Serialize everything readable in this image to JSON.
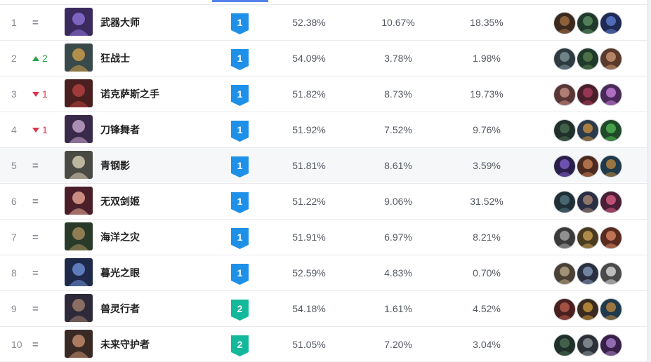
{
  "rows": [
    {
      "rank": "1",
      "change": {
        "type": "same",
        "text": "="
      },
      "name": "武器大师",
      "tier": "1",
      "win_rate": "52.38%",
      "pick_rate": "10.67%",
      "ban_rate": "18.35%",
      "icon": {
        "name": "weapon-master-portrait-icon",
        "bg": "#3a2a5e",
        "fg": "#8a6fd0"
      },
      "counters": [
        {
          "name": "counter-champ-1-icon",
          "bg": "#3d2a1f",
          "fg": "#9b6a3f"
        },
        {
          "name": "counter-champ-2-icon",
          "bg": "#1f3a2a",
          "fg": "#5a8a5f"
        },
        {
          "name": "counter-champ-3-icon",
          "bg": "#1f2a55",
          "fg": "#5a78c8"
        }
      ]
    },
    {
      "rank": "2",
      "change": {
        "type": "up",
        "text": "2"
      },
      "name": "狂战士",
      "tier": "1",
      "win_rate": "54.09%",
      "pick_rate": "3.78%",
      "ban_rate": "1.98%",
      "icon": {
        "name": "berserker-portrait-icon",
        "bg": "#3a4a4a",
        "fg": "#c79a4a"
      },
      "counters": [
        {
          "name": "counter-champ-1-icon",
          "bg": "#2d3a3f",
          "fg": "#7a8f95"
        },
        {
          "name": "counter-champ-2-icon",
          "bg": "#1f3a2a",
          "fg": "#557a4a"
        },
        {
          "name": "counter-champ-3-icon",
          "bg": "#5a3a2a",
          "fg": "#c59070"
        }
      ]
    },
    {
      "rank": "3",
      "change": {
        "type": "down",
        "text": "1"
      },
      "name": "诺克萨斯之手",
      "tier": "1",
      "win_rate": "51.82%",
      "pick_rate": "8.73%",
      "ban_rate": "19.73%",
      "icon": {
        "name": "hand-of-noxus-portrait-icon",
        "bg": "#4a1f1f",
        "fg": "#b04040"
      },
      "counters": [
        {
          "name": "counter-champ-1-icon",
          "bg": "#5a3535",
          "fg": "#c08a80"
        },
        {
          "name": "counter-champ-2-icon",
          "bg": "#4a1f2a",
          "fg": "#a03a5a"
        },
        {
          "name": "counter-champ-3-icon",
          "bg": "#4a2a5a",
          "fg": "#c07ad0"
        }
      ]
    },
    {
      "rank": "4",
      "change": {
        "type": "down",
        "text": "1"
      },
      "name": "刀锋舞者",
      "tier": "1",
      "win_rate": "51.92%",
      "pick_rate": "7.52%",
      "ban_rate": "9.76%",
      "icon": {
        "name": "blade-dancer-portrait-icon",
        "bg": "#3a2a4a",
        "fg": "#c0a0c8"
      },
      "counters": [
        {
          "name": "counter-champ-1-icon",
          "bg": "#1f2f2a",
          "fg": "#4a6a50"
        },
        {
          "name": "counter-champ-2-icon",
          "bg": "#2a3a4a",
          "fg": "#c08a40"
        },
        {
          "name": "counter-champ-3-icon",
          "bg": "#1f4a2a",
          "fg": "#50b050"
        }
      ]
    },
    {
      "rank": "5",
      "change": {
        "type": "same",
        "text": "="
      },
      "name": "青钢影",
      "tier": "1",
      "win_rate": "51.81%",
      "pick_rate": "8.61%",
      "ban_rate": "3.59%",
      "icon": {
        "name": "steel-shadow-portrait-icon",
        "bg": "#4a4a45",
        "fg": "#d0c8b0"
      },
      "counters": [
        {
          "name": "counter-champ-1-icon",
          "bg": "#2a1f4a",
          "fg": "#7a5ac0"
        },
        {
          "name": "counter-champ-2-icon",
          "bg": "#4a2a1f",
          "fg": "#c07a50"
        },
        {
          "name": "counter-champ-3-icon",
          "bg": "#1f3a4a",
          "fg": "#b08040"
        }
      ]
    },
    {
      "rank": "6",
      "change": {
        "type": "same",
        "text": "="
      },
      "name": "无双剑姬",
      "tier": "1",
      "win_rate": "51.22%",
      "pick_rate": "9.06%",
      "ban_rate": "31.52%",
      "icon": {
        "name": "peerless-swordmaiden-portrait-icon",
        "bg": "#4a1f2a",
        "fg": "#e0a090"
      },
      "counters": [
        {
          "name": "counter-champ-1-icon",
          "bg": "#1f2f35",
          "fg": "#50707a"
        },
        {
          "name": "counter-champ-2-icon",
          "bg": "#2a2f45",
          "fg": "#a08070"
        },
        {
          "name": "counter-champ-3-icon",
          "bg": "#4a1f35",
          "fg": "#d05a80"
        }
      ]
    },
    {
      "rank": "7",
      "change": {
        "type": "same",
        "text": "="
      },
      "name": "海洋之灾",
      "tier": "1",
      "win_rate": "51.91%",
      "pick_rate": "6.97%",
      "ban_rate": "8.21%",
      "icon": {
        "name": "scourge-of-seas-portrait-icon",
        "bg": "#2a3a2a",
        "fg": "#a08a5a"
      },
      "counters": [
        {
          "name": "counter-champ-1-icon",
          "bg": "#3a3a3a",
          "fg": "#a0a0a0"
        },
        {
          "name": "counter-champ-2-icon",
          "bg": "#4a3a1f",
          "fg": "#c09a50"
        },
        {
          "name": "counter-champ-3-icon",
          "bg": "#5a2a1f",
          "fg": "#d08060"
        }
      ]
    },
    {
      "rank": "8",
      "change": {
        "type": "same",
        "text": "="
      },
      "name": "暮光之眼",
      "tier": "1",
      "win_rate": "52.59%",
      "pick_rate": "4.83%",
      "ban_rate": "0.70%",
      "icon": {
        "name": "eye-of-twilight-portrait-icon",
        "bg": "#1f2a4a",
        "fg": "#6a8ad0"
      },
      "counters": [
        {
          "name": "counter-champ-1-icon",
          "bg": "#4a4035",
          "fg": "#b0a080"
        },
        {
          "name": "counter-champ-2-icon",
          "bg": "#2a3040",
          "fg": "#8090b0"
        },
        {
          "name": "counter-champ-3-icon",
          "bg": "#4a4a4a",
          "fg": "#d0d0d0"
        }
      ]
    },
    {
      "rank": "9",
      "change": {
        "type": "same",
        "text": "="
      },
      "name": "兽灵行者",
      "tier": "2",
      "win_rate": "54.18%",
      "pick_rate": "1.61%",
      "ban_rate": "4.52%",
      "icon": {
        "name": "spirit-walker-portrait-icon",
        "bg": "#2f2a3a",
        "fg": "#9a7a6a"
      },
      "counters": [
        {
          "name": "counter-champ-1-icon",
          "bg": "#4a1f1f",
          "fg": "#b05a4a"
        },
        {
          "name": "counter-champ-2-icon",
          "bg": "#3a2a1f",
          "fg": "#c0903a"
        },
        {
          "name": "counter-champ-3-icon",
          "bg": "#1f3a4a",
          "fg": "#b08040"
        }
      ]
    },
    {
      "rank": "10",
      "change": {
        "type": "same",
        "text": "="
      },
      "name": "未来守护者",
      "tier": "2",
      "win_rate": "51.05%",
      "pick_rate": "7.20%",
      "ban_rate": "3.04%",
      "icon": {
        "name": "future-guardian-portrait-icon",
        "bg": "#3a2a25",
        "fg": "#c08a6a"
      },
      "counters": [
        {
          "name": "counter-champ-1-icon",
          "bg": "#1f2f2a",
          "fg": "#4a6a50"
        },
        {
          "name": "counter-champ-2-icon",
          "bg": "#2a3035",
          "fg": "#8a9095"
        },
        {
          "name": "counter-champ-3-icon",
          "bg": "#3a1f4a",
          "fg": "#a07ac0"
        }
      ]
    }
  ],
  "tier_colors": {
    "1": "#1e90e8",
    "2": "#14b89a"
  }
}
